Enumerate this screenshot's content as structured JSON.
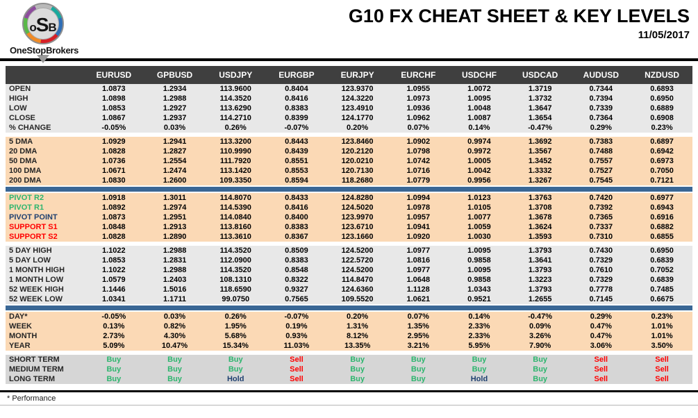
{
  "header": {
    "logo": {
      "o": "o",
      "s": "S",
      "b": "B",
      "brand": "OneStopBrokers"
    },
    "title": "G10 FX CHEAT SHEET & KEY LEVELS",
    "date": "11/05/2017"
  },
  "colors": {
    "buy": "#2db56e",
    "sell": "#ff0000",
    "hold": "#1f4070",
    "resistance_label": "#2db56e",
    "support_label": "#ff0000",
    "pivot_label": "#1f4070",
    "divider_bar": "#3a6795",
    "section_peach": "#fbd9b5",
    "section_gray": "#e8e8e8",
    "section_signals": "#d6d6d6",
    "header_bg": "#3f3f3f"
  },
  "table": {
    "columns": [
      "EURUSD",
      "GPBUSD",
      "USDJPY",
      "EURGBP",
      "EURJPY",
      "EURCHF",
      "USDCHF",
      "USDCAD",
      "AUDUSD",
      "NZDUSD"
    ],
    "sections": [
      {
        "id": "ohlc",
        "bg": "gray",
        "divider_after": "gap",
        "rows": [
          {
            "label": "OPEN",
            "values": [
              "1.0873",
              "1.2934",
              "113.9600",
              "0.8404",
              "123.9370",
              "1.0955",
              "1.0072",
              "1.3719",
              "0.7344",
              "0.6893"
            ]
          },
          {
            "label": "HIGH",
            "values": [
              "1.0898",
              "1.2988",
              "114.3520",
              "0.8416",
              "124.3220",
              "1.0973",
              "1.0095",
              "1.3732",
              "0.7394",
              "0.6950"
            ]
          },
          {
            "label": "LOW",
            "values": [
              "1.0853",
              "1.2927",
              "113.6290",
              "0.8383",
              "123.4910",
              "1.0936",
              "1.0048",
              "1.3647",
              "0.7339",
              "0.6889"
            ]
          },
          {
            "label": "CLOSE",
            "values": [
              "1.0867",
              "1.2937",
              "114.2710",
              "0.8399",
              "124.1770",
              "1.0962",
              "1.0087",
              "1.3654",
              "0.7364",
              "0.6908"
            ]
          },
          {
            "label": "% CHANGE",
            "values": [
              "-0.05%",
              "0.03%",
              "0.26%",
              "-0.07%",
              "0.20%",
              "0.07%",
              "0.14%",
              "-0.47%",
              "0.29%",
              "0.23%"
            ]
          }
        ]
      },
      {
        "id": "dma",
        "bg": "peach",
        "divider_after": "bar",
        "rows": [
          {
            "label": "5 DMA",
            "values": [
              "1.0929",
              "1.2941",
              "113.3200",
              "0.8443",
              "123.8460",
              "1.0902",
              "0.9974",
              "1.3692",
              "0.7383",
              "0.6897"
            ]
          },
          {
            "label": "20 DMA",
            "values": [
              "1.0828",
              "1.2827",
              "110.9990",
              "0.8439",
              "120.2120",
              "1.0798",
              "0.9972",
              "1.3567",
              "0.7488",
              "0.6942"
            ]
          },
          {
            "label": "50 DMA",
            "values": [
              "1.0736",
              "1.2554",
              "111.7920",
              "0.8551",
              "120.0210",
              "1.0742",
              "1.0005",
              "1.3452",
              "0.7557",
              "0.6973"
            ]
          },
          {
            "label": "100 DMA",
            "values": [
              "1.0671",
              "1.2474",
              "113.1420",
              "0.8553",
              "120.7130",
              "1.0716",
              "1.0042",
              "1.3332",
              "0.7527",
              "0.7050"
            ]
          },
          {
            "label": "200 DMA",
            "values": [
              "1.0830",
              "1.2600",
              "109.3350",
              "0.8594",
              "118.2680",
              "1.0779",
              "0.9956",
              "1.3267",
              "0.7545",
              "0.7121"
            ]
          }
        ]
      },
      {
        "id": "pivots",
        "bg": "peach",
        "divider_after": "gap",
        "rows": [
          {
            "label": "PIVOT R2",
            "label_color": "green",
            "values": [
              "1.0918",
              "1.3011",
              "114.8070",
              "0.8433",
              "124.8280",
              "1.0994",
              "1.0123",
              "1.3763",
              "0.7420",
              "0.6977"
            ]
          },
          {
            "label": "PIVOT R1",
            "label_color": "green",
            "values": [
              "1.0892",
              "1.2974",
              "114.5390",
              "0.8416",
              "124.5020",
              "1.0978",
              "1.0105",
              "1.3708",
              "0.7392",
              "0.6943"
            ]
          },
          {
            "label": "PIVOT POINT",
            "label_color": "navy",
            "values": [
              "1.0873",
              "1.2951",
              "114.0840",
              "0.8400",
              "123.9970",
              "1.0957",
              "1.0077",
              "1.3678",
              "0.7365",
              "0.6916"
            ]
          },
          {
            "label": "SUPPORT S1",
            "label_color": "red",
            "values": [
              "1.0848",
              "1.2913",
              "113.8160",
              "0.8383",
              "123.6710",
              "1.0941",
              "1.0059",
              "1.3624",
              "0.7337",
              "0.6882"
            ]
          },
          {
            "label": "SUPPORT S2",
            "label_color": "red",
            "values": [
              "1.0828",
              "1.2890",
              "113.3610",
              "0.8367",
              "123.1660",
              "1.0920",
              "1.0030",
              "1.3593",
              "0.7310",
              "0.6855"
            ]
          }
        ]
      },
      {
        "id": "ranges",
        "bg": "gray",
        "divider_after": "bar",
        "rows": [
          {
            "label": "5 DAY HIGH",
            "values": [
              "1.1022",
              "1.2988",
              "114.3520",
              "0.8509",
              "124.5200",
              "1.0977",
              "1.0095",
              "1.3793",
              "0.7430",
              "0.6950"
            ]
          },
          {
            "label": "5 DAY LOW",
            "values": [
              "1.0853",
              "1.2831",
              "112.0900",
              "0.8383",
              "122.5720",
              "1.0816",
              "0.9858",
              "1.3641",
              "0.7329",
              "0.6839"
            ]
          },
          {
            "label": "1 MONTH HIGH",
            "values": [
              "1.1022",
              "1.2988",
              "114.3520",
              "0.8548",
              "124.5200",
              "1.0977",
              "1.0095",
              "1.3793",
              "0.7610",
              "0.7052"
            ]
          },
          {
            "label": "1 MONTH LOW",
            "values": [
              "1.0579",
              "1.2403",
              "108.1310",
              "0.8322",
              "114.8470",
              "1.0648",
              "0.9858",
              "1.3223",
              "0.7329",
              "0.6839"
            ]
          },
          {
            "label": "52 WEEK HIGH",
            "values": [
              "1.1446",
              "1.5016",
              "118.6590",
              "0.9327",
              "124.6360",
              "1.1128",
              "1.0343",
              "1.3793",
              "0.7778",
              "0.7485"
            ]
          },
          {
            "label": "52 WEEK LOW",
            "values": [
              "1.0341",
              "1.1711",
              "99.0750",
              "0.7565",
              "109.5520",
              "1.0621",
              "0.9521",
              "1.2655",
              "0.7145",
              "0.6675"
            ]
          }
        ]
      },
      {
        "id": "performance",
        "bg": "peach",
        "divider_after": "gap",
        "rows": [
          {
            "label": "DAY*",
            "values": [
              "-0.05%",
              "0.03%",
              "0.26%",
              "-0.07%",
              "0.20%",
              "0.07%",
              "0.14%",
              "-0.47%",
              "0.29%",
              "0.23%"
            ]
          },
          {
            "label": "WEEK",
            "values": [
              "0.13%",
              "0.82%",
              "1.95%",
              "0.19%",
              "1.31%",
              "1.35%",
              "2.33%",
              "0.09%",
              "0.47%",
              "1.01%"
            ]
          },
          {
            "label": "MONTH",
            "values": [
              "2.73%",
              "4.30%",
              "5.68%",
              "0.93%",
              "8.12%",
              "2.95%",
              "2.33%",
              "3.26%",
              "0.47%",
              "1.01%"
            ]
          },
          {
            "label": "YEAR",
            "values": [
              "5.09%",
              "10.47%",
              "15.34%",
              "11.03%",
              "13.35%",
              "3.21%",
              "5.95%",
              "7.90%",
              "3.06%",
              "3.50%"
            ]
          }
        ]
      },
      {
        "id": "signals",
        "bg": "signals",
        "divider_after": null,
        "rows": [
          {
            "label": "SHORT TERM",
            "values": [
              "Buy",
              "Buy",
              "Buy",
              "Sell",
              "Buy",
              "Buy",
              "Buy",
              "Buy",
              "Sell",
              "Sell"
            ]
          },
          {
            "label": "MEDIUM TERM",
            "values": [
              "Buy",
              "Buy",
              "Buy",
              "Sell",
              "Buy",
              "Buy",
              "Buy",
              "Buy",
              "Sell",
              "Sell"
            ]
          },
          {
            "label": "LONG TERM",
            "values": [
              "Buy",
              "Buy",
              "Hold",
              "Sell",
              "Buy",
              "Buy",
              "Hold",
              "Buy",
              "Sell",
              "Sell"
            ]
          }
        ]
      }
    ]
  },
  "footer": {
    "note": "* Performance"
  }
}
